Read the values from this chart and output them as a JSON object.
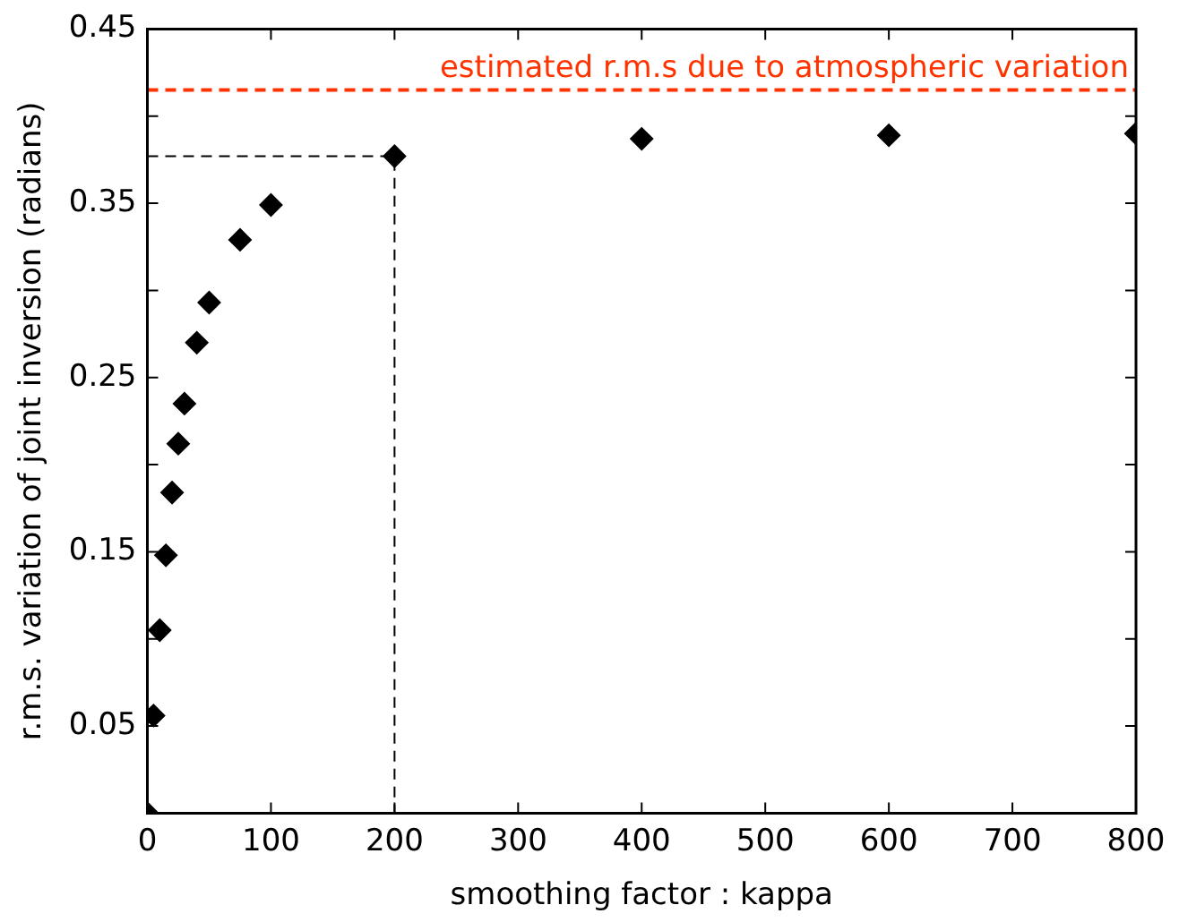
{
  "chart_data": {
    "type": "scatter",
    "xlabel": "smoothing factor : kappa",
    "ylabel": "r.m.s. variation of joint inversion (radians)",
    "xlim": [
      0,
      800
    ],
    "xticks": [
      0,
      100,
      200,
      300,
      400,
      500,
      600,
      700,
      800
    ],
    "ylim": [
      0,
      0.45
    ],
    "yticks": [
      0.05,
      {
        "value": 0.1,
        "label": null
      },
      0.15,
      {
        "value": 0.2,
        "label": null
      },
      0.25,
      {
        "value": 0.3,
        "label": null
      },
      0.35,
      {
        "value": 0.4,
        "label": null
      },
      0.45
    ],
    "grid": false,
    "legend": false,
    "marker": "diamond",
    "series": [
      {
        "color": "#000000",
        "x": [
          0,
          5,
          10,
          15,
          20,
          25,
          30,
          40,
          50,
          75,
          100,
          200,
          400,
          600,
          800
        ],
        "values": [
          0,
          0.056,
          0.105,
          0.148,
          0.184,
          0.212,
          0.235,
          0.27,
          0.293,
          0.329,
          0.349,
          0.377,
          0.387,
          0.389,
          0.39
        ]
      },
      {
        "type": "line",
        "color": "#000000",
        "line_style": "dashed",
        "marker": "none",
        "x": [
          0,
          200,
          200
        ],
        "values": [
          0.377,
          0.377,
          0
        ]
      }
    ],
    "ref_lines": [
      {
        "axis": "y",
        "value": 0.415,
        "label": "estimated r.m.s due to atmospheric variation",
        "color": "#ff3300",
        "line_style": "dashed"
      }
    ]
  }
}
